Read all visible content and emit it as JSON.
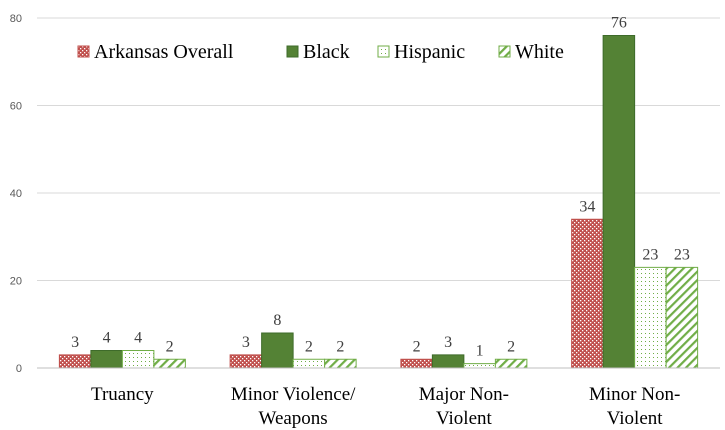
{
  "chart_data": {
    "type": "bar",
    "title": "",
    "xlabel": "",
    "ylabel": "",
    "ylim": [
      0,
      80
    ],
    "yticks": [
      0,
      20,
      40,
      60,
      80
    ],
    "grid": true,
    "legend_position": "top-left",
    "categories": [
      [
        "Truancy"
      ],
      [
        "Minor Violence/",
        "Weapons"
      ],
      [
        "Major Non-",
        "Violent"
      ],
      [
        "Minor Non-",
        "Violent"
      ]
    ],
    "series": [
      {
        "name": "Arkansas Overall",
        "values": [
          3,
          3,
          2,
          34
        ],
        "color": "#c0504d",
        "pattern": "dots-red"
      },
      {
        "name": "Black",
        "values": [
          4,
          8,
          3,
          76
        ],
        "color": "#548235",
        "pattern": "solid"
      },
      {
        "name": "Hispanic",
        "values": [
          4,
          2,
          1,
          23
        ],
        "color": "#70ad47",
        "pattern": "dots-light"
      },
      {
        "name": "White",
        "values": [
          2,
          2,
          2,
          23
        ],
        "color": "#70ad47",
        "pattern": "diagonal"
      }
    ]
  }
}
